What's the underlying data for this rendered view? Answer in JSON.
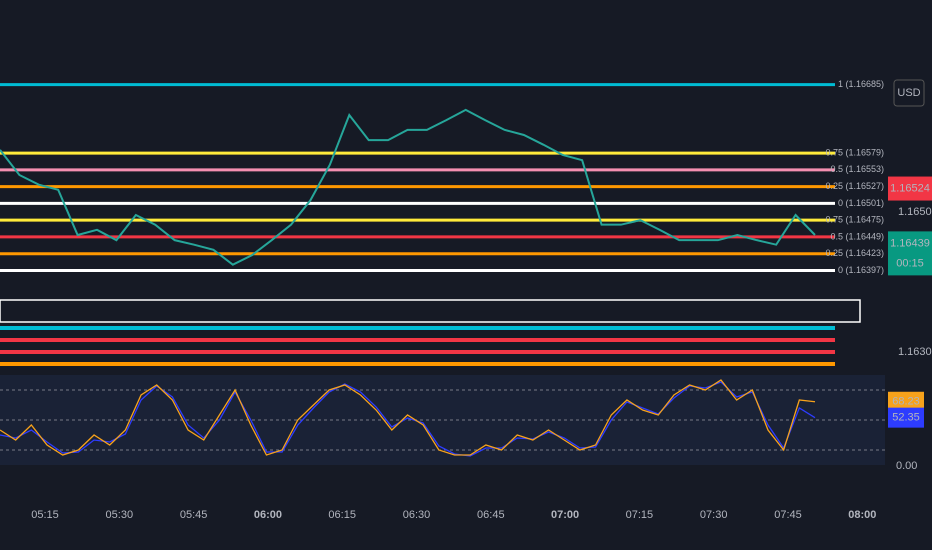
{
  "chart_data": [
    {
      "type": "line",
      "currency": "USD",
      "color": "#26a69a",
      "values": [
        1.16584,
        1.16545,
        1.1653,
        1.16522,
        1.16452,
        1.1646,
        1.16444,
        1.16483,
        1.16468,
        1.16444,
        1.16437,
        1.16429,
        1.16406,
        1.16421,
        1.16444,
        1.16468,
        1.16506,
        1.16561,
        1.16638,
        1.16599,
        1.16599,
        1.16615,
        1.16615,
        1.1663,
        1.16646,
        1.1663,
        1.16615,
        1.16607,
        1.16592,
        1.16576,
        1.16568,
        1.16468,
        1.16468,
        1.16475,
        1.1646,
        1.16444,
        1.16444,
        1.16444,
        1.16452,
        1.16444,
        1.16437,
        1.16483,
        1.16452
      ],
      "ylim": [
        1.1639,
        1.167
      ],
      "levels": [
        {
          "value": 1.16685,
          "label": "1 (1.16685)",
          "color": "#00bcd4"
        },
        {
          "value": 1.16579,
          "label": "0.75 (1.16579)",
          "color": "#ffeb3b"
        },
        {
          "value": 1.16553,
          "label": "0.5 (1.16553)",
          "color": "#f48fb1"
        },
        {
          "value": 1.16527,
          "label": "0.25 (1.16527)",
          "color": "#ff9800"
        },
        {
          "value": 1.16501,
          "label": "0 (1.16501)",
          "color": "#ffffff"
        },
        {
          "value": 1.16475,
          "label": "0.75 (1.16475)",
          "color": "#ffeb3b"
        },
        {
          "value": 1.16449,
          "label": "0.5 (1.16449)",
          "color": "#f23645"
        },
        {
          "value": 1.16423,
          "label": "0.25 (1.16423)",
          "color": "#ff9800"
        },
        {
          "value": 1.16397,
          "label": "0 (1.16397)",
          "color": "#ffffff"
        }
      ],
      "price_badges": [
        {
          "value": 1.16524,
          "color": "#f23645"
        },
        {
          "value": 1.16439,
          "color": "#089981",
          "countdown": "00:15"
        }
      ],
      "yticks": [
        {
          "value": 1.165,
          "label": "1.16500"
        }
      ],
      "lower_tick": {
        "value": 1.163,
        "label": "1.16300"
      }
    },
    {
      "type": "oscillator",
      "series": [
        {
          "color": "#f7a21b",
          "values": [
            40,
            30,
            45,
            25,
            15,
            20,
            35,
            25,
            40,
            75,
            85,
            70,
            40,
            30,
            55,
            80,
            45,
            15,
            20,
            50,
            65,
            80,
            85,
            75,
            60,
            40,
            55,
            45,
            20,
            15,
            15,
            25,
            20,
            35,
            30,
            40,
            30,
            20,
            25,
            55,
            70,
            60,
            55,
            75,
            85,
            80,
            90,
            70,
            80,
            40,
            20,
            70,
            68.23
          ]
        },
        {
          "color": "#2d3cff",
          "values": [
            35,
            32,
            40,
            28,
            17,
            18,
            30,
            28,
            36,
            70,
            84,
            73,
            45,
            32,
            50,
            78,
            50,
            18,
            18,
            45,
            62,
            78,
            86,
            78,
            63,
            43,
            52,
            47,
            24,
            16,
            14,
            22,
            22,
            32,
            31,
            38,
            32,
            22,
            23,
            50,
            68,
            62,
            56,
            72,
            84,
            82,
            88,
            73,
            78,
            45,
            22,
            62,
            52.35
          ]
        }
      ],
      "ylim": [
        0,
        100
      ],
      "grid_levels": [
        80,
        50,
        20
      ],
      "yticks": [
        {
          "value": 0,
          "label": "0.00"
        }
      ]
    },
    {
      "type": "time_axis",
      "labels": [
        "05:15",
        "05:30",
        "05:45",
        "06:00",
        "06:15",
        "06:30",
        "06:45",
        "07:00",
        "07:15",
        "07:30",
        "07:45",
        "08:00"
      ]
    }
  ]
}
